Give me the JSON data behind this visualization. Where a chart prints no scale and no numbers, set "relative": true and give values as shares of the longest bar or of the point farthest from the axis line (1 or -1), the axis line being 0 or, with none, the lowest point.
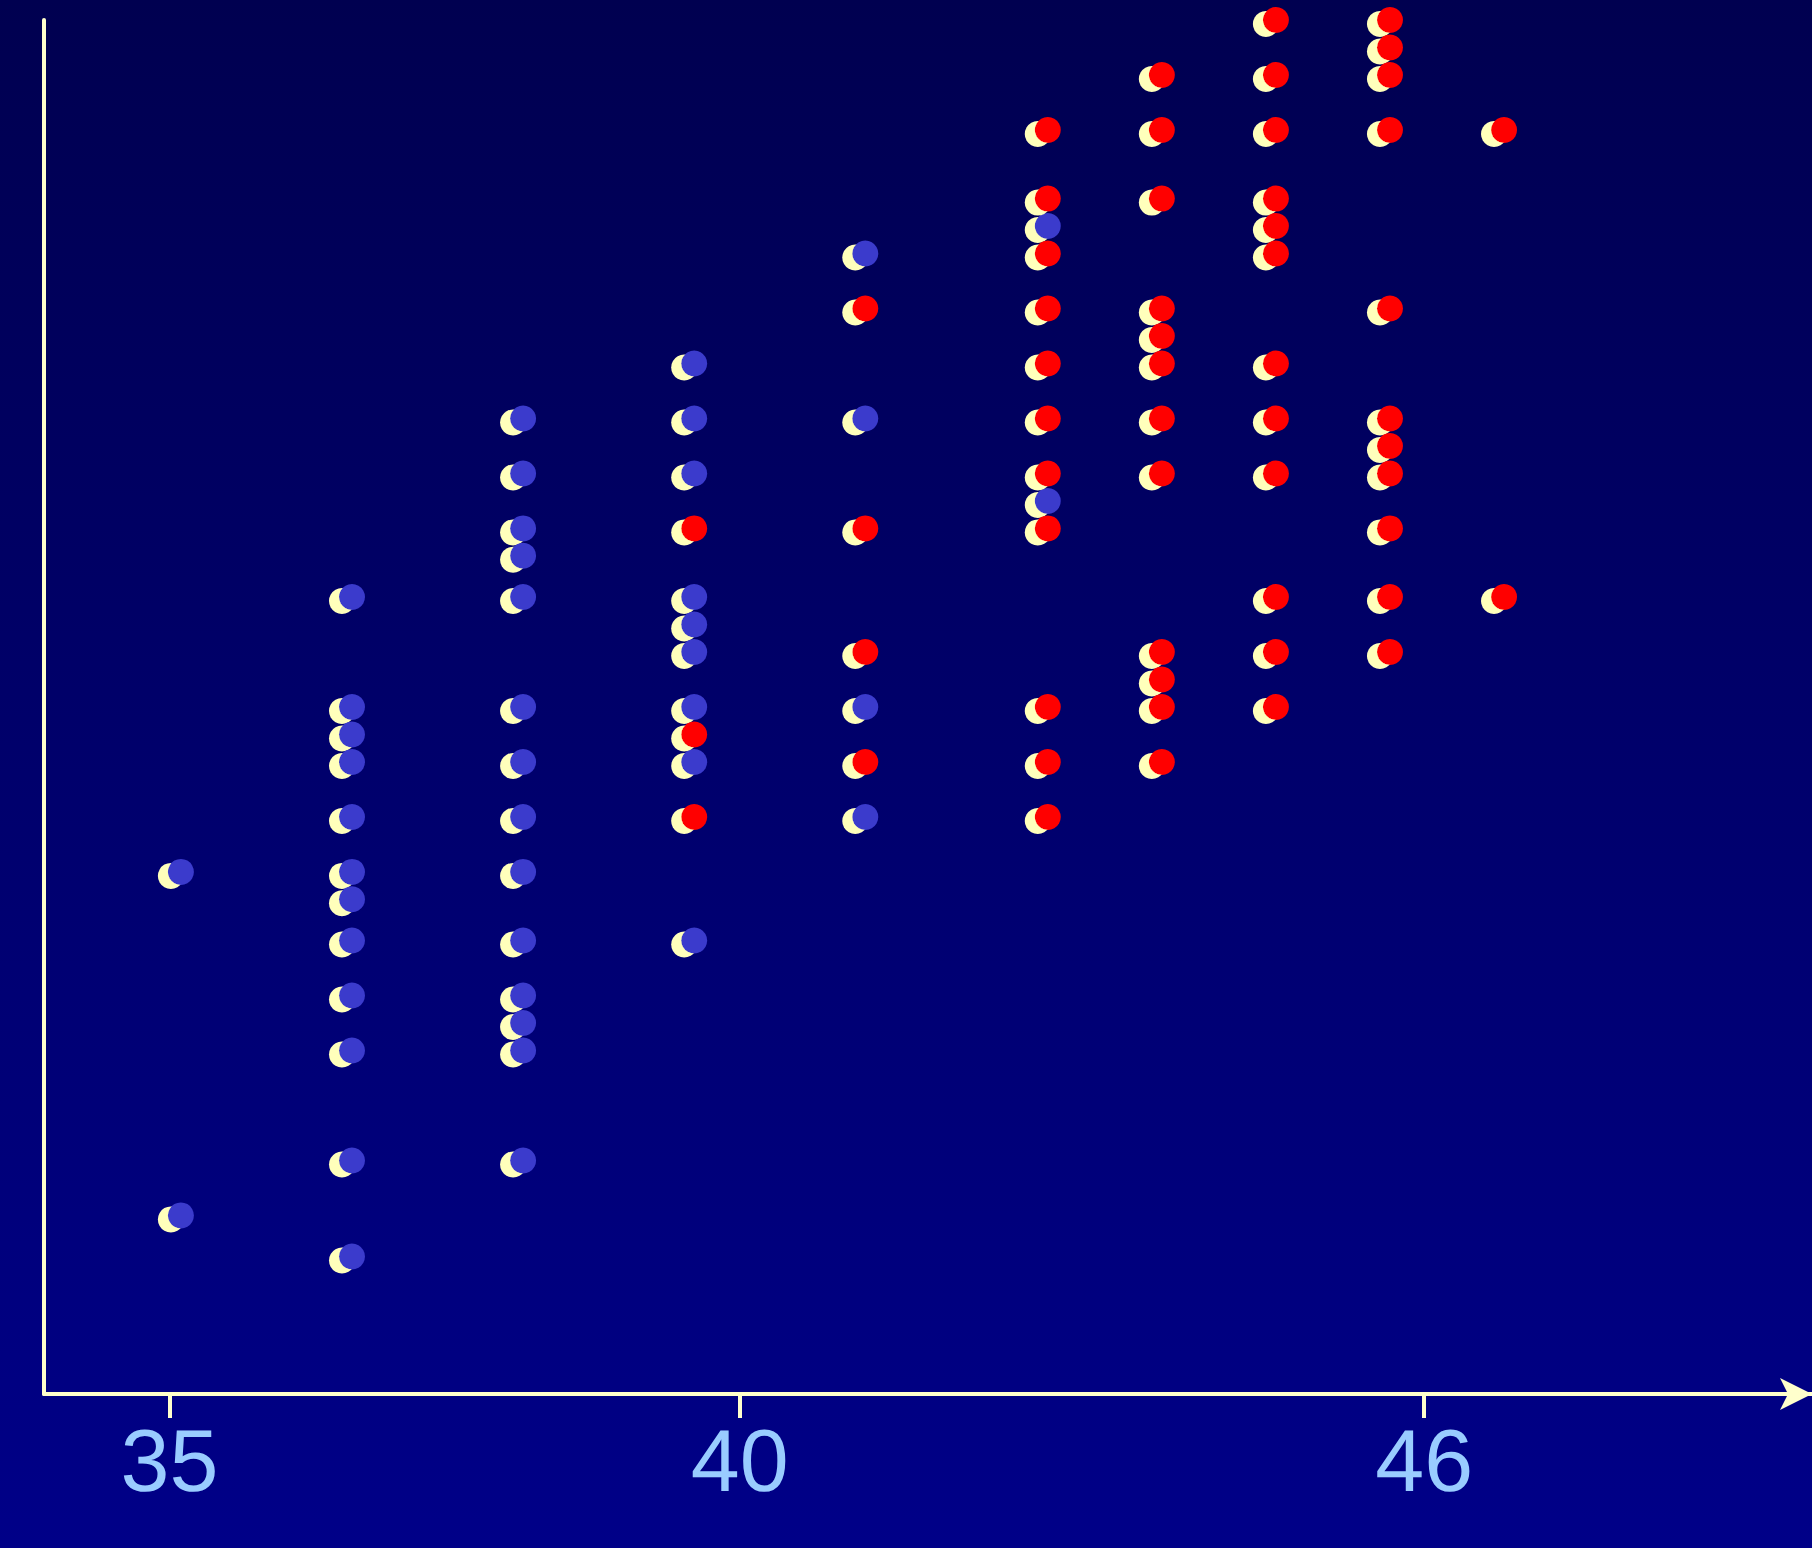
{
  "chart_data": {
    "type": "scatter",
    "relative": true,
    "xlim": [
      33.9,
      49.4
    ],
    "xticks": [
      35,
      40,
      46
    ],
    "tick_labels": "x",
    "grid": false,
    "legend": false,
    "marker": "circle",
    "series": [
      {
        "color": "#3a3acc",
        "x": [
          35.1,
          35.1,
          36.6,
          36.6,
          36.6,
          36.6,
          36.6,
          36.6,
          36.6,
          36.6,
          36.6,
          36.6,
          36.6,
          36.6,
          38.1,
          38.1,
          38.1,
          38.1,
          38.1,
          38.1,
          38.1,
          38.1,
          38.1,
          38.1,
          38.1,
          38.1,
          38.1,
          38.1,
          39.6,
          39.6,
          39.6,
          39.6,
          39.6,
          39.6,
          39.6,
          39.6,
          39.6,
          41.1,
          41.1,
          41.1,
          41.1,
          42.7,
          42.7
        ],
        "values": [
          0.38,
          0.13,
          0.58,
          0.5,
          0.48,
          0.46,
          0.42,
          0.38,
          0.36,
          0.33,
          0.29,
          0.25,
          0.17,
          0.1,
          0.71,
          0.67,
          0.63,
          0.61,
          0.58,
          0.5,
          0.46,
          0.42,
          0.38,
          0.33,
          0.29,
          0.27,
          0.25,
          0.17,
          0.75,
          0.71,
          0.67,
          0.58,
          0.56,
          0.54,
          0.5,
          0.46,
          0.33,
          0.83,
          0.71,
          0.5,
          0.42,
          0.85,
          0.65
        ]
      },
      {
        "color": "#ff0000",
        "x": [
          39.6,
          39.6,
          39.6,
          41.1,
          41.1,
          41.1,
          41.1,
          42.7,
          42.7,
          42.7,
          42.7,
          42.7,
          42.7,
          42.7,
          42.7,
          42.7,
          42.7,
          42.7,
          43.7,
          43.7,
          43.7,
          43.7,
          43.7,
          43.7,
          43.7,
          43.7,
          43.7,
          43.7,
          43.7,
          43.7,
          44.7,
          44.7,
          44.7,
          44.7,
          44.7,
          44.7,
          44.7,
          44.7,
          44.7,
          44.7,
          44.7,
          44.7,
          45.7,
          45.7,
          45.7,
          45.7,
          45.7,
          45.7,
          45.7,
          45.7,
          45.7,
          45.7,
          45.7,
          46.7,
          46.7
        ],
        "values": [
          0.63,
          0.48,
          0.42,
          0.79,
          0.63,
          0.54,
          0.46,
          0.92,
          0.87,
          0.83,
          0.79,
          0.75,
          0.71,
          0.67,
          0.63,
          0.5,
          0.46,
          0.42,
          0.96,
          0.92,
          0.87,
          0.79,
          0.77,
          0.75,
          0.71,
          0.67,
          0.54,
          0.52,
          0.5,
          0.46,
          1.0,
          0.96,
          0.92,
          0.87,
          0.85,
          0.83,
          0.75,
          0.71,
          0.67,
          0.58,
          0.54,
          0.5,
          1.0,
          0.98,
          0.96,
          0.92,
          0.79,
          0.71,
          0.69,
          0.67,
          0.63,
          0.58,
          0.54,
          0.92,
          0.58
        ]
      }
    ]
  }
}
